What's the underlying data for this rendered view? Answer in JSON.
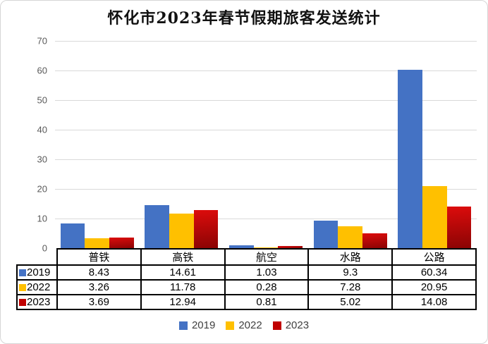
{
  "title": "怀化市2023年春节假期旅客发送统计",
  "chart_data": {
    "type": "bar",
    "title": "怀化市2023年春节假期旅客发送统计",
    "categories": [
      "普铁",
      "高铁",
      "航空",
      "水路",
      "公路"
    ],
    "series": [
      {
        "name": "2019",
        "color": "#4472C4",
        "values": [
          8.43,
          14.61,
          1.03,
          9.3,
          60.34
        ]
      },
      {
        "name": "2022",
        "color": "#FFC000",
        "values": [
          3.26,
          11.78,
          0.28,
          7.28,
          20.95
        ]
      },
      {
        "name": "2023",
        "color": "#C00000",
        "gradient": [
          "#DD0C0C",
          "#8A0404"
        ],
        "values": [
          3.69,
          12.94,
          0.81,
          5.02,
          14.08
        ]
      }
    ],
    "ylim": [
      0,
      70
    ],
    "yticks": [
      0,
      10,
      20,
      30,
      40,
      50,
      60,
      70
    ],
    "grid": true,
    "grid_color": "#D9D9D9",
    "axis_label_color": "#595959",
    "legend_position": "bottom",
    "data_table_shown": true
  }
}
